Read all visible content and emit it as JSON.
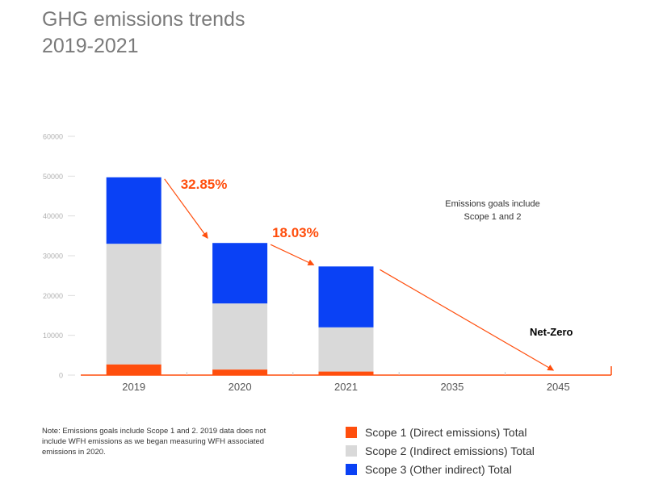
{
  "title": {
    "line1": "GHG emissions trends",
    "line2": "2019-2021"
  },
  "colors": {
    "scope1": "#ff4e0d",
    "scope2": "#d9d9d9",
    "scope3": "#0a41f5",
    "accent": "#ff4e0d",
    "axis": "#999999"
  },
  "chart_data": {
    "type": "bar",
    "stacked": true,
    "categories": [
      "2019",
      "2020",
      "2021",
      "2035",
      "2045"
    ],
    "series": [
      {
        "name": "Scope 1 (Direct emissions) Total",
        "values": [
          2700,
          1400,
          900,
          null,
          null
        ]
      },
      {
        "name": "Scope 2 (Indirect emissions) Total",
        "values": [
          30300,
          16600,
          11100,
          null,
          null
        ]
      },
      {
        "name": "Scope 3 (Other indirect) Total",
        "values": [
          16700,
          15200,
          15300,
          null,
          null
        ]
      }
    ],
    "ylim": [
      0,
      60000
    ],
    "yticks": [
      "0",
      "10000",
      "20000",
      "30000",
      "40000",
      "50000",
      "60000"
    ],
    "legend_position": "bottom-right",
    "annotations": {
      "drop_2019_2020": "32.85%",
      "drop_2020_2021": "18.03%",
      "goal_note_line1": "Emissions goals include",
      "goal_note_line2": "Scope 1 and 2",
      "net_zero": "Net-Zero",
      "net_zero_year": "2045"
    }
  },
  "note": "Note: Emissions goals include Scope 1 and 2. 2019 data does not include WFH emissions as we began measuring WFH associated emissions in 2020.",
  "legend": [
    {
      "label": "Scope 1 (Direct emissions) Total",
      "color": "#ff4e0d"
    },
    {
      "label": "Scope 2 (Indirect emissions) Total",
      "color": "#d9d9d9"
    },
    {
      "label": "Scope 3 (Other indirect) Total",
      "color": "#0a41f5"
    }
  ]
}
